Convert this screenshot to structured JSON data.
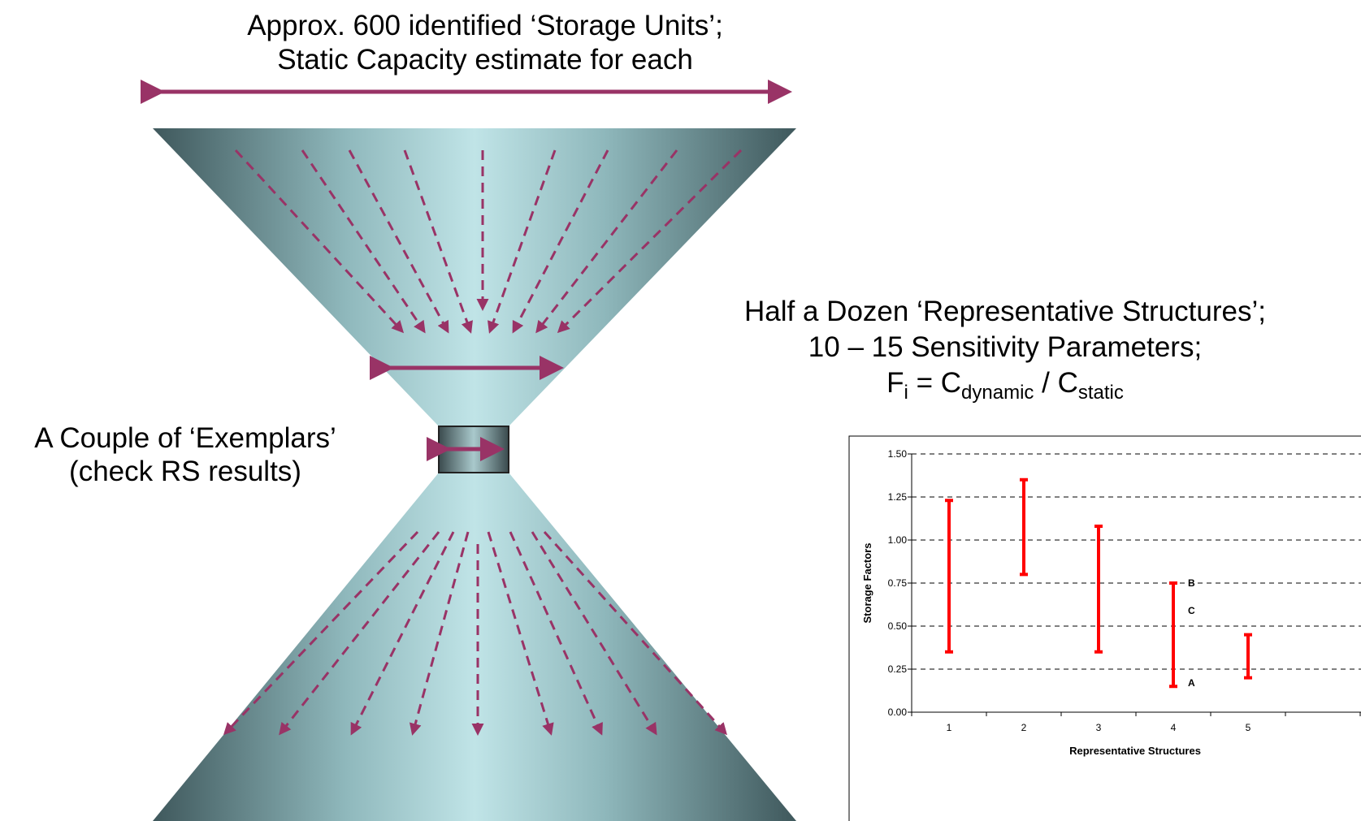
{
  "top_label": [
    "Approx. 600 identified ‘Storage Units’;",
    "Static Capacity estimate for each"
  ],
  "right_label": [
    "Half a Dozen ‘Representative Structures’;",
    "10 – 15 Sensitivity Parameters;"
  ],
  "formula": {
    "f": "F",
    "f_sub": "i",
    "eq": " = C",
    "num_sub": "dynamic",
    "slash": " / C",
    "den_sub": "static"
  },
  "left_label": [
    "A Couple of ‘Exemplars’",
    "(check RS results)"
  ],
  "chart_data": {
    "type": "range_bar",
    "categories": [
      "1",
      "2",
      "3",
      "4",
      "5"
    ],
    "low": [
      0.35,
      0.8,
      0.35,
      0.15,
      0.2
    ],
    "high": [
      1.23,
      1.35,
      1.08,
      0.75,
      0.45
    ],
    "color": "#ff0000",
    "xlabel": "Representative Structures",
    "ylabel": "Storage Factors",
    "ylim": [
      0,
      1.5
    ],
    "yticks": [
      {
        "value": 0,
        "label": "0.00"
      },
      {
        "value": 0.25,
        "label": "0.25"
      },
      {
        "value": 0.5,
        "label": "0.50"
      },
      {
        "value": 0.75,
        "label": "0.75"
      },
      {
        "value": 1,
        "label": "1.00"
      },
      {
        "value": 1.25,
        "label": "1.25"
      },
      {
        "value": 1.5,
        "label": "1.50"
      }
    ],
    "grid": true,
    "annotations": [
      {
        "text": "B",
        "value": 0.75
      },
      {
        "text": "C",
        "value": 0.59
      },
      {
        "text": "A",
        "value": 0.17
      }
    ]
  }
}
